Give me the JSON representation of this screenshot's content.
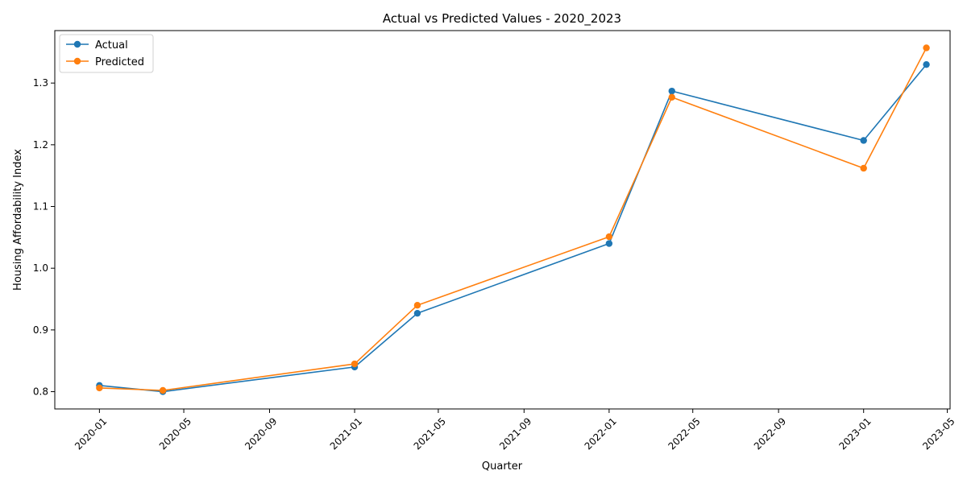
{
  "chart_data": {
    "type": "line",
    "title": "Actual vs Predicted Values - 2020_2023",
    "xlabel": "Quarter",
    "ylabel": "Housing Affordability Index",
    "x": [
      "2020-01-01",
      "2020-04-01",
      "2021-01-01",
      "2021-04-01",
      "2022-01-01",
      "2022-04-01",
      "2023-01-01",
      "2023-04-01"
    ],
    "series": [
      {
        "name": "Actual",
        "color": "#1f77b4",
        "values": [
          0.81,
          0.8,
          0.84,
          0.927,
          1.04,
          1.287,
          1.207,
          1.33
        ]
      },
      {
        "name": "Predicted",
        "color": "#ff7f0e",
        "values": [
          0.806,
          0.802,
          0.845,
          0.94,
          1.051,
          1.277,
          1.162,
          1.357
        ]
      }
    ],
    "x_ticks": [
      "2020-01",
      "2020-05",
      "2020-09",
      "2021-01",
      "2021-05",
      "2021-09",
      "2022-01",
      "2022-05",
      "2022-09",
      "2023-01",
      "2023-05"
    ],
    "y_ticks": [
      "0.8",
      "0.9",
      "1.0",
      "1.1",
      "1.2",
      "1.3"
    ],
    "xlim": [
      "2019-10-29",
      "2023-05-05"
    ],
    "ylim": [
      0.772,
      1.385
    ],
    "legend": "upper-left",
    "grid": false
  }
}
